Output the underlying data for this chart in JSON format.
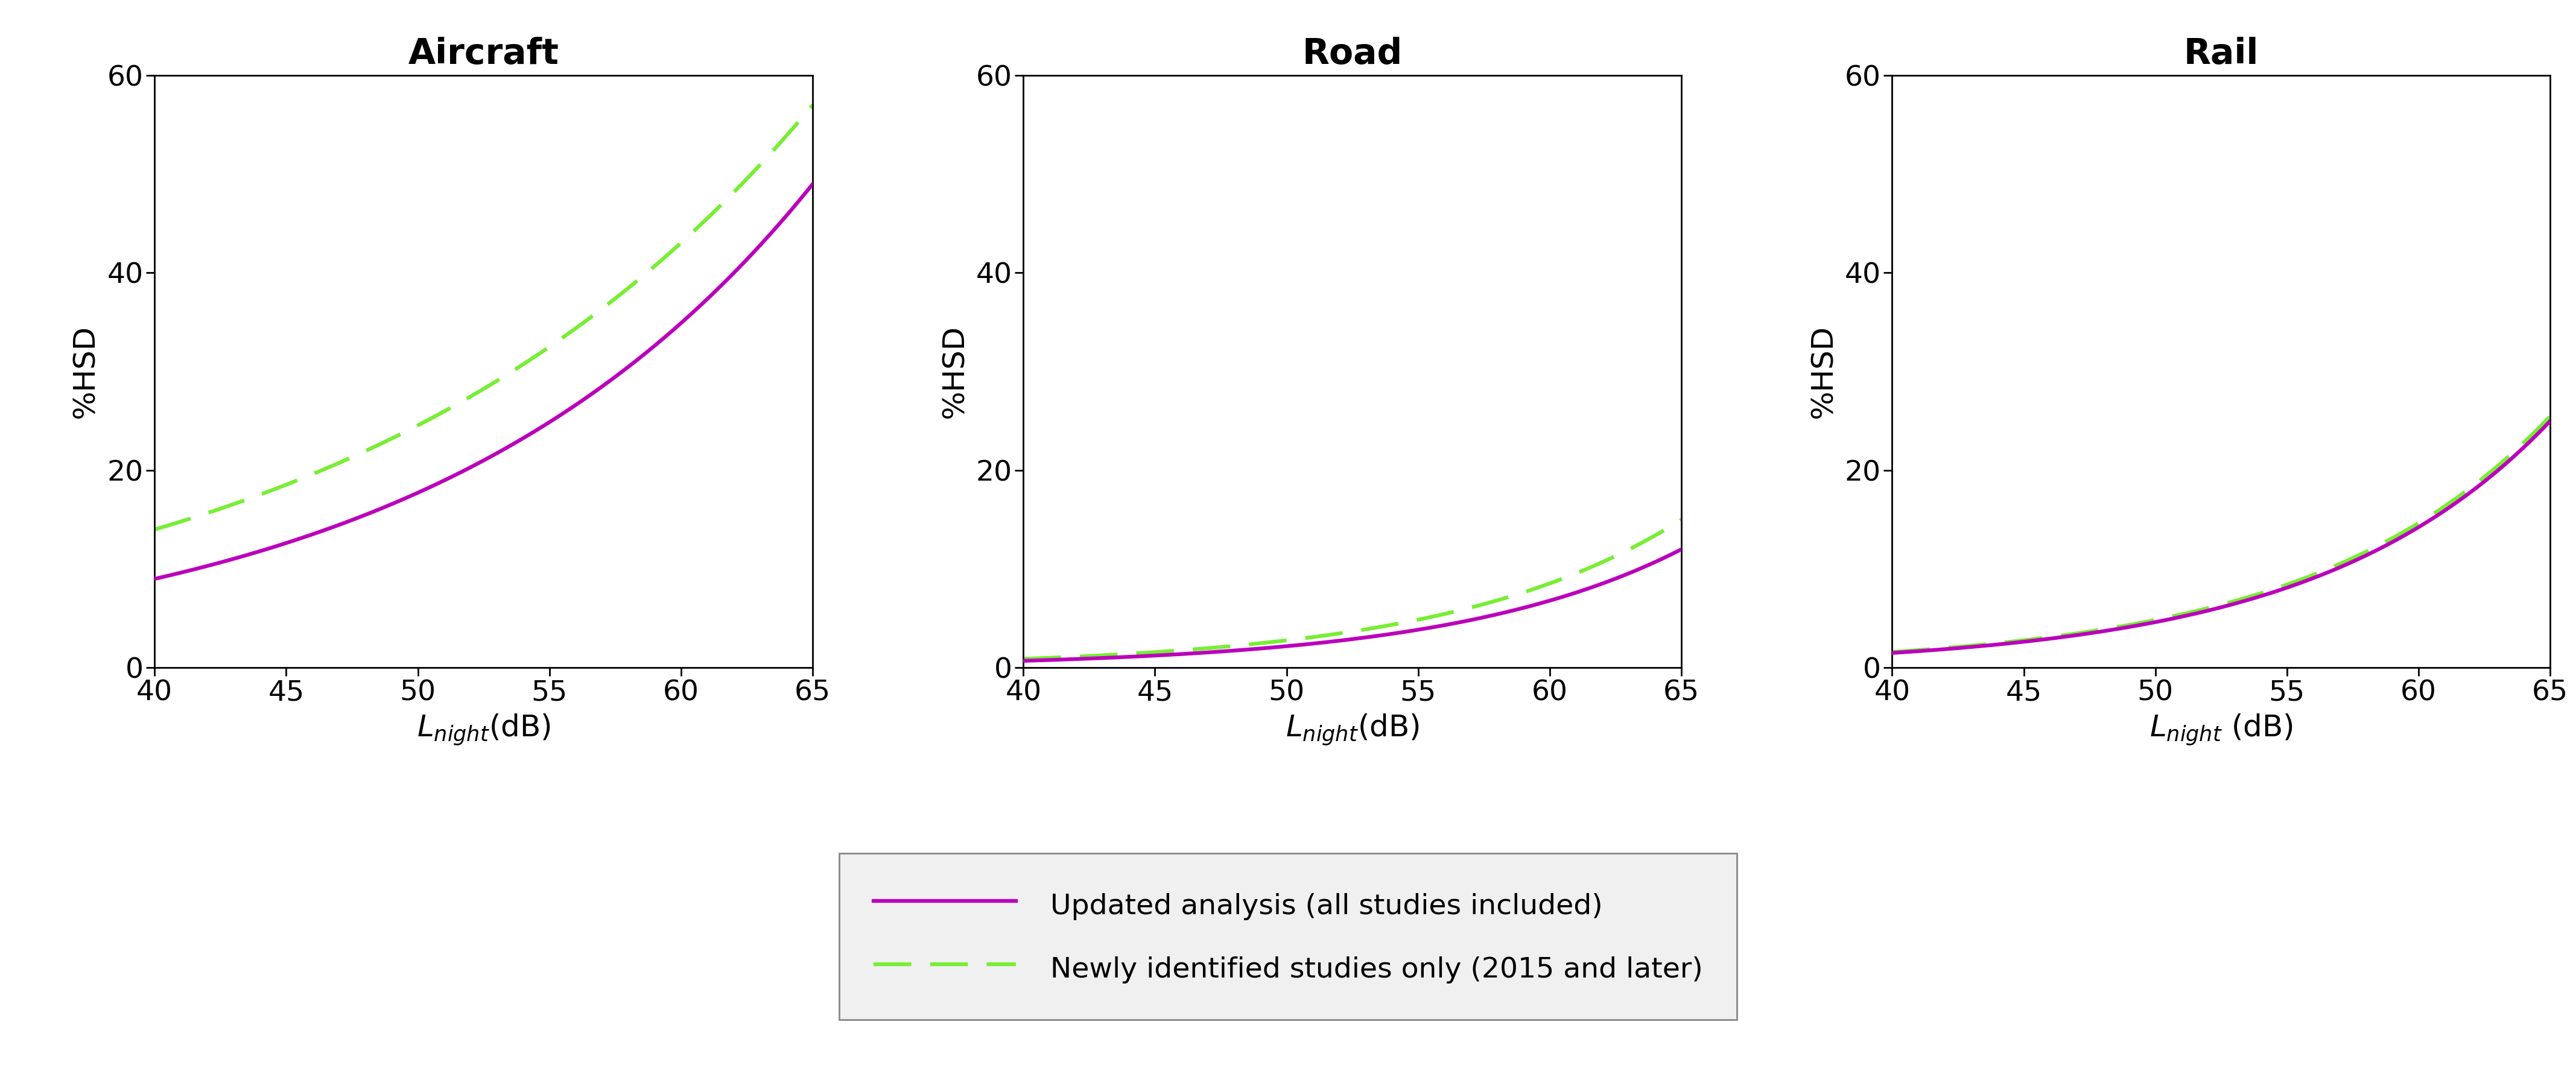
{
  "titles": [
    "Aircraft",
    "Road",
    "Rail"
  ],
  "xlim": [
    40,
    65
  ],
  "ylim": [
    0,
    60
  ],
  "xticks": [
    40,
    45,
    50,
    55,
    60,
    65
  ],
  "yticks": [
    0,
    20,
    40,
    60
  ],
  "xlabels": [
    "$L_{night}$(dB)",
    "$L_{night}$(dB)",
    "$L_{night}$ (dB)"
  ],
  "ylabel": "%HSD",
  "color_solid": "#BB00BB",
  "color_dash": "#77EE33",
  "legend_labels": [
    "Updated analysis (all studies included)",
    "Newly identified studies only (2015 and later)"
  ],
  "aircraft_solid_y0": 9.0,
  "aircraft_solid_y1": 49.0,
  "aircraft_dash_y0": 14.0,
  "aircraft_dash_y1": 57.0,
  "road_solid_y0": 0.7,
  "road_solid_y1": 12.0,
  "road_dash_y0": 0.9,
  "road_dash_y1": 15.0,
  "rail_solid_y0": 1.5,
  "rail_solid_y1": 25.0,
  "rail_dash_y0": 1.6,
  "rail_dash_y1": 25.5,
  "background_color": "#ffffff",
  "line_width": 4.5,
  "title_fontsize": 42,
  "label_fontsize": 36,
  "tick_fontsize": 34,
  "legend_fontsize": 34
}
